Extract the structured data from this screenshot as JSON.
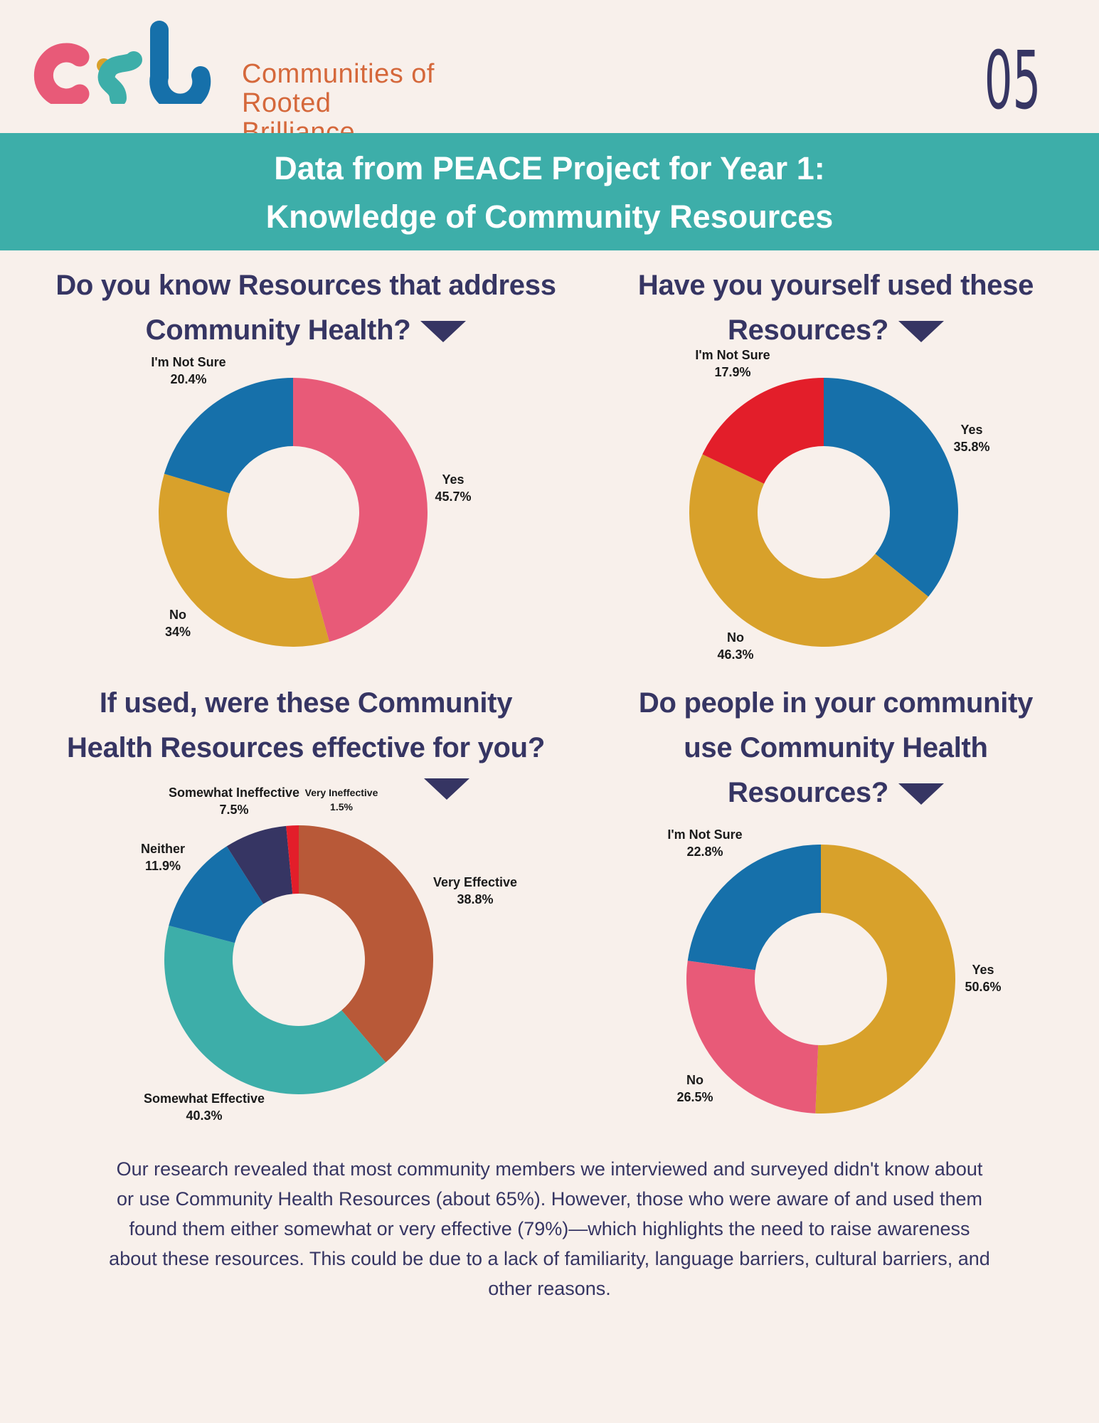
{
  "header": {
    "logo_mark": "crb",
    "org_name_line1": "Communities of",
    "org_name_line2": "Rooted Brilliance",
    "page_number": "05"
  },
  "banner": {
    "line1": "Data from PEACE Project for Year 1:",
    "line2": "Knowledge of Community Resources"
  },
  "colors": {
    "teal": "#3daea9",
    "navy": "#363563",
    "pink": "#e85a78",
    "blue": "#1670aa",
    "gold": "#d8a12b",
    "red": "#e31e2a",
    "rust": "#b85938",
    "orange": "#d5683b"
  },
  "chart_data": [
    {
      "type": "pie",
      "title_line1": "Do you know Resources that address",
      "title_line2": "Community Health?",
      "categories": [
        "Yes",
        "No",
        "I'm Not Sure"
      ],
      "values": [
        45.7,
        34,
        20.4
      ],
      "value_labels": [
        "45.7%",
        "34%",
        "20.4%"
      ],
      "colors": [
        "#e85a78",
        "#d8a12b",
        "#1670aa"
      ]
    },
    {
      "type": "pie",
      "title_line1": "Have you yourself used these",
      "title_line2": "Resources?",
      "categories": [
        "Yes",
        "No",
        "I'm Not Sure"
      ],
      "values": [
        35.8,
        46.3,
        17.9
      ],
      "value_labels": [
        "35.8%",
        "46.3%",
        "17.9%"
      ],
      "colors": [
        "#1670aa",
        "#d8a12b",
        "#e31e2a"
      ]
    },
    {
      "type": "pie",
      "title_line1": "If used, were these Community",
      "title_line2": "Health Resources effective for you?",
      "categories": [
        "Very Effective",
        "Somewhat Effective",
        "Neither",
        "Somewhat Ineffective",
        "Very Ineffective"
      ],
      "values": [
        38.8,
        40.3,
        11.9,
        7.5,
        1.5
      ],
      "value_labels": [
        "38.8%",
        "40.3%",
        "11.9%",
        "7.5%",
        "1.5%"
      ],
      "colors": [
        "#b85938",
        "#3daea9",
        "#1670aa",
        "#363563",
        "#e31e2a"
      ]
    },
    {
      "type": "pie",
      "title_line1": "Do people in your community",
      "title_line2": "use Community Health",
      "title_line3": "Resources?",
      "categories": [
        "Yes",
        "No",
        "I'm Not Sure"
      ],
      "values": [
        50.6,
        26.5,
        22.8
      ],
      "value_labels": [
        "50.6%",
        "26.5%",
        "22.8%"
      ],
      "colors": [
        "#d8a12b",
        "#e85a78",
        "#1670aa"
      ]
    }
  ],
  "summary": "Our research revealed that most community members we interviewed and surveyed didn't know about or use Community Health Resources (about 65%). However, those who were aware of and used them found them either somewhat or very effective (79%)—which highlights the need to raise awareness about these resources. This could be due to a lack of familiarity, language barriers, cultural barriers, and other reasons."
}
